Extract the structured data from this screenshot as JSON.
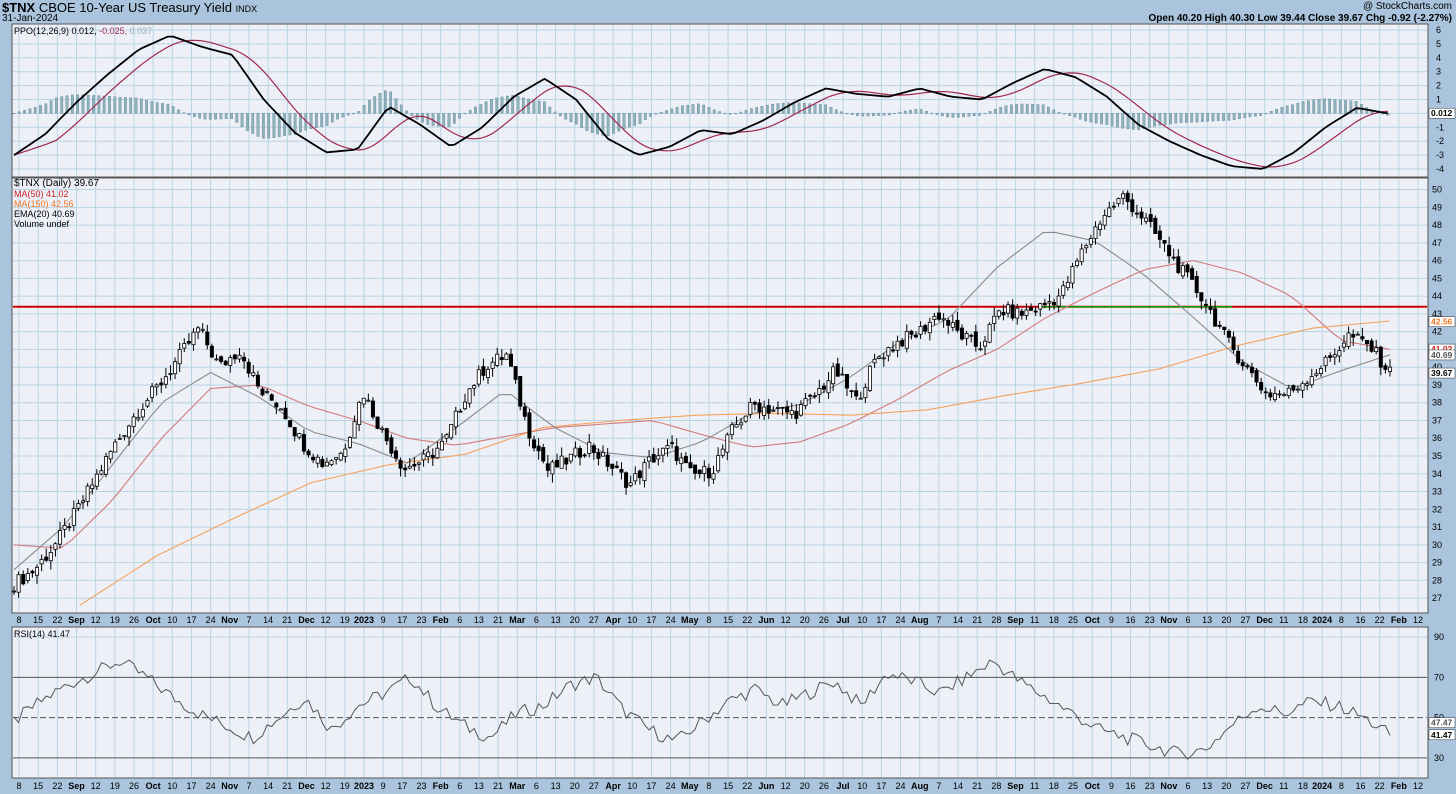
{
  "header": {
    "symbol": "$TNX",
    "name": "CBOE 10-Year US Treasury Yield",
    "exchange": "INDX",
    "date": "31-Jan-2024",
    "brand": "@ StockCharts.com",
    "ohlc": "Open 40.20  High 40.30  Low 39.44  Close 39.67  Chg -0.92 (-2.27%)"
  },
  "colors": {
    "background": "#eef0f8",
    "frame": "#a9c4dc",
    "grid": "#b8d4e4",
    "ma50": "#d27a7a",
    "ma150": "#f5a15a",
    "ema20": "#8a8a8a",
    "resistance": "#cc0000",
    "green_line": "#00a000",
    "ppo_line": "#000000",
    "ppo_signal": "#a0294e",
    "histogram": "#8fb2bd",
    "rsi_line": "#555555"
  },
  "ppo_panel": {
    "legend_ppo": "PPO(12,26,9)",
    "legend_v1": "0.012,",
    "legend_v2": "-0.025,",
    "legend_v3": "0.037",
    "value_tag": "0.012",
    "yticks": [
      "6",
      "5",
      "4",
      "3",
      "2",
      "1",
      "0",
      "-1",
      "-2",
      "-3",
      "-4"
    ]
  },
  "price_panel": {
    "legend": [
      {
        "text": "$TNX (Daily) 39.67",
        "color": "#000000"
      },
      {
        "text": "MA(50) 41.02",
        "color": "#cc2222"
      },
      {
        "text": "MA(150) 42.56",
        "color": "#ee7722"
      },
      {
        "text": "EMA(20) 40.69",
        "color": "#000000"
      },
      {
        "text": "Volume undef",
        "color": "#000000"
      }
    ],
    "yticks": [
      "50",
      "49",
      "48",
      "47",
      "46",
      "45",
      "44",
      "43",
      "42",
      "41",
      "40",
      "39",
      "38",
      "37",
      "36",
      "35",
      "34",
      "33",
      "32",
      "31",
      "30",
      "29",
      "28",
      "27"
    ],
    "tags": {
      "ma150": "42.56",
      "ma50": "41.02",
      "ema20": "40.69",
      "close": "39.67"
    }
  },
  "rsi_panel": {
    "legend": "RSI(14) 41.47",
    "yticks": [
      "90",
      "70",
      "50",
      "30"
    ],
    "tags": {
      "ma": "47.47",
      "rsi": "41.47"
    }
  },
  "x_axis": {
    "labels": [
      {
        "t": "8",
        "b": false
      },
      {
        "t": "15",
        "b": false
      },
      {
        "t": "22",
        "b": false
      },
      {
        "t": "Sep",
        "b": true
      },
      {
        "t": "12",
        "b": false
      },
      {
        "t": "19",
        "b": false
      },
      {
        "t": "26",
        "b": false
      },
      {
        "t": "Oct",
        "b": true
      },
      {
        "t": "10",
        "b": false
      },
      {
        "t": "17",
        "b": false
      },
      {
        "t": "24",
        "b": false
      },
      {
        "t": "Nov",
        "b": true
      },
      {
        "t": "7",
        "b": false
      },
      {
        "t": "14",
        "b": false
      },
      {
        "t": "21",
        "b": false
      },
      {
        "t": "Dec",
        "b": true
      },
      {
        "t": "12",
        "b": false
      },
      {
        "t": "19",
        "b": false
      },
      {
        "t": "2023",
        "b": true
      },
      {
        "t": "9",
        "b": false
      },
      {
        "t": "17",
        "b": false
      },
      {
        "t": "23",
        "b": false
      },
      {
        "t": "Feb",
        "b": true
      },
      {
        "t": "6",
        "b": false
      },
      {
        "t": "13",
        "b": false
      },
      {
        "t": "21",
        "b": false
      },
      {
        "t": "Mar",
        "b": true
      },
      {
        "t": "6",
        "b": false
      },
      {
        "t": "13",
        "b": false
      },
      {
        "t": "20",
        "b": false
      },
      {
        "t": "27",
        "b": false
      },
      {
        "t": "Apr",
        "b": true
      },
      {
        "t": "10",
        "b": false
      },
      {
        "t": "17",
        "b": false
      },
      {
        "t": "24",
        "b": false
      },
      {
        "t": "May",
        "b": true
      },
      {
        "t": "8",
        "b": false
      },
      {
        "t": "15",
        "b": false
      },
      {
        "t": "22",
        "b": false
      },
      {
        "t": "Jun",
        "b": true
      },
      {
        "t": "12",
        "b": false
      },
      {
        "t": "20",
        "b": false
      },
      {
        "t": "26",
        "b": false
      },
      {
        "t": "Jul",
        "b": true
      },
      {
        "t": "10",
        "b": false
      },
      {
        "t": "17",
        "b": false
      },
      {
        "t": "24",
        "b": false
      },
      {
        "t": "Aug",
        "b": true
      },
      {
        "t": "7",
        "b": false
      },
      {
        "t": "14",
        "b": false
      },
      {
        "t": "21",
        "b": false
      },
      {
        "t": "28",
        "b": false
      },
      {
        "t": "Sep",
        "b": true
      },
      {
        "t": "11",
        "b": false
      },
      {
        "t": "18",
        "b": false
      },
      {
        "t": "25",
        "b": false
      },
      {
        "t": "Oct",
        "b": true
      },
      {
        "t": "9",
        "b": false
      },
      {
        "t": "16",
        "b": false
      },
      {
        "t": "23",
        "b": false
      },
      {
        "t": "Nov",
        "b": true
      },
      {
        "t": "6",
        "b": false
      },
      {
        "t": "13",
        "b": false
      },
      {
        "t": "20",
        "b": false
      },
      {
        "t": "27",
        "b": false
      },
      {
        "t": "Dec",
        "b": true
      },
      {
        "t": "11",
        "b": false
      },
      {
        "t": "18",
        "b": false
      },
      {
        "t": "2024",
        "b": true
      },
      {
        "t": "8",
        "b": false
      },
      {
        "t": "16",
        "b": false
      },
      {
        "t": "22",
        "b": false
      },
      {
        "t": "Feb",
        "b": true
      },
      {
        "t": "12",
        "b": false
      }
    ]
  },
  "chart_data": {
    "type": "line",
    "resistance_level": 43.4,
    "series": [
      {
        "name": "$TNX (Daily)",
        "anchor_values": [
          27.8,
          28.6,
          30.0,
          31.8,
          33.8,
          35.8,
          37.5,
          38.9,
          40.5,
          42.2,
          40.0,
          41.0,
          38.6,
          37.8,
          35.8,
          34.6,
          35.2,
          38.6,
          36.2,
          34.3,
          34.8,
          35.8,
          38.5,
          40.1,
          40.7,
          36.6,
          34.2,
          34.8,
          35.6,
          34.5,
          33.4,
          34.8,
          35.5,
          33.9,
          34.2,
          36.5,
          37.9,
          37.6,
          37.4,
          38.4,
          39.8,
          38.1,
          40.5,
          41.4,
          41.9,
          43.0,
          41.9,
          41.1,
          43.2,
          43.0,
          43.4,
          44.1,
          46.5,
          48.5,
          49.6,
          48.4,
          46.8,
          45.2,
          43.7,
          41.6,
          40.0,
          38.5,
          38.5,
          39.4,
          40.4,
          41.8,
          41.2,
          39.7
        ]
      },
      {
        "name": "MA(50)",
        "anchor_values": [
          30.0,
          29.8,
          32.5,
          36.0,
          38.8,
          39.0,
          37.8,
          37.0,
          36.0,
          35.6,
          36.1,
          36.6,
          36.8,
          37.0,
          36.2,
          35.5,
          35.8,
          36.8,
          38.2,
          39.8,
          41.0,
          42.8,
          44.2,
          45.5,
          46.0,
          45.3,
          44.0,
          41.5,
          41.0
        ]
      },
      {
        "name": "MA(150)",
        "anchor_values": [
          26.6,
          29.4,
          31.5,
          33.5,
          34.5,
          35.1,
          36.6,
          37.0,
          37.3,
          37.4,
          37.3,
          37.6,
          38.4,
          39.1,
          39.9,
          41.2,
          42.2,
          42.6
        ]
      },
      {
        "name": "EMA(20)",
        "anchor_values": [
          28.6,
          31.0,
          34.5,
          38.0,
          39.7,
          38.3,
          36.4,
          35.7,
          34.6,
          36.6,
          38.7,
          36.6,
          35.2,
          34.9,
          35.8,
          37.4,
          37.9,
          39.4,
          41.4,
          42.7,
          45.6,
          47.7,
          47.1,
          45.2,
          42.8,
          40.3,
          38.8,
          39.8,
          40.7
        ]
      }
    ],
    "ppo": {
      "value": 0.012,
      "signal": -0.025,
      "histogram": 0.037,
      "ylim": [
        -4,
        6
      ]
    },
    "rsi": {
      "value": 41.47,
      "ma": 47.47,
      "levels": [
        30,
        50,
        70
      ],
      "ylim": [
        20,
        95
      ]
    },
    "ylim": [
      26.5,
      50.2
    ]
  }
}
